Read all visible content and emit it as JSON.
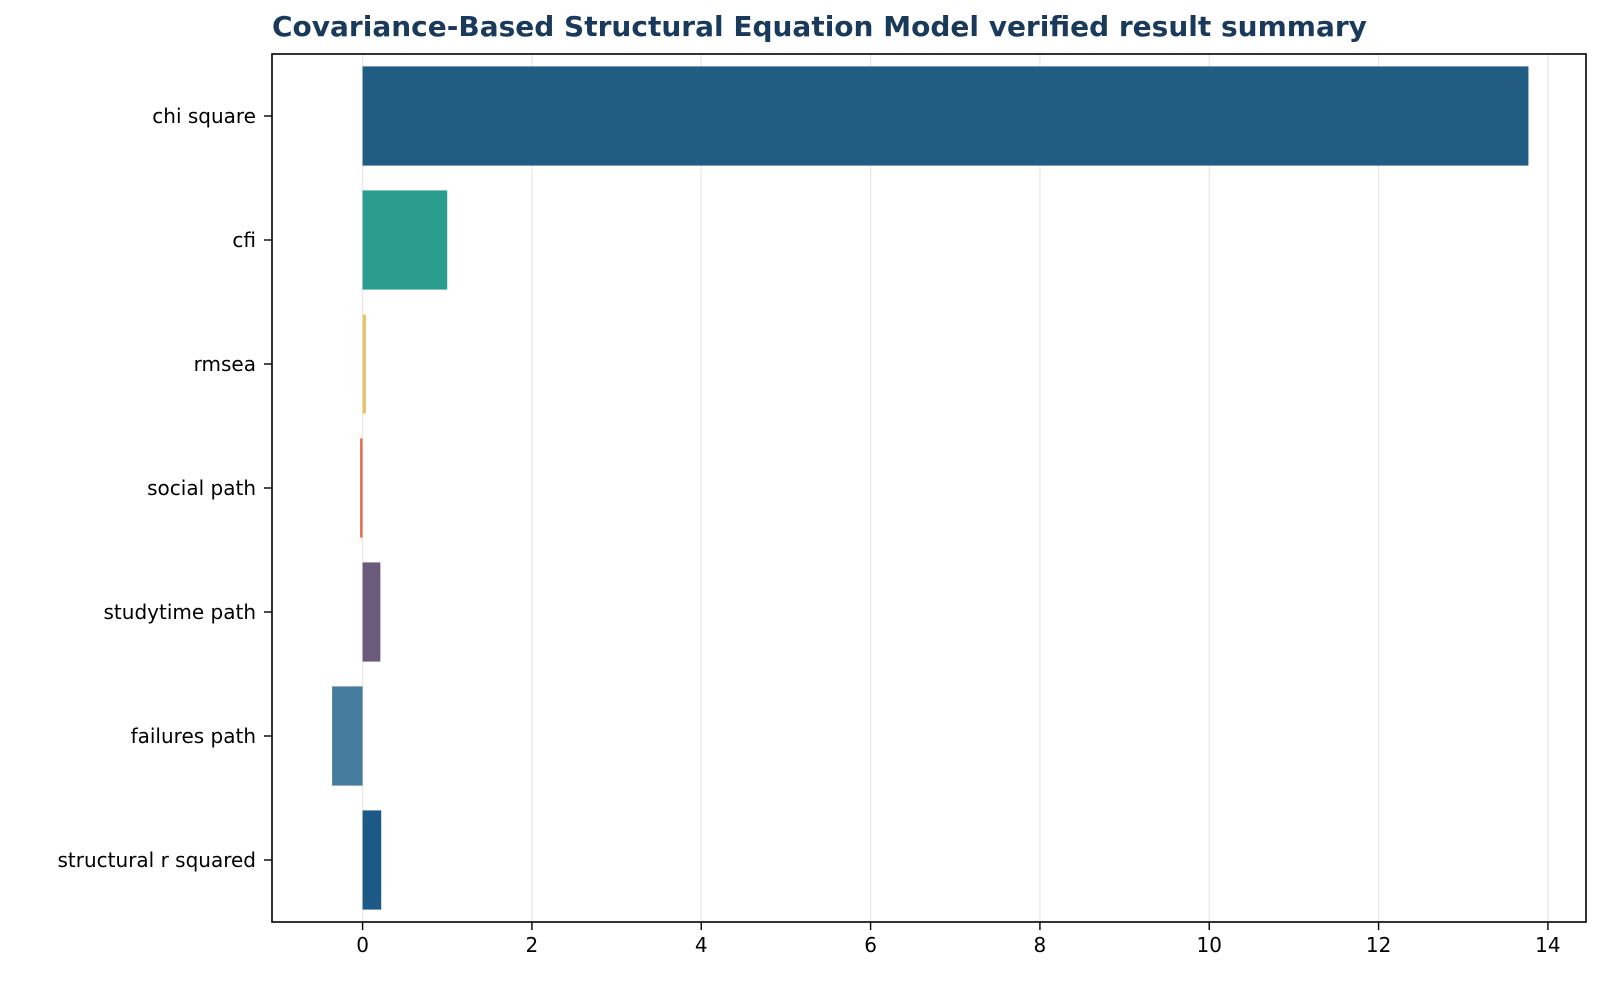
{
  "chart_data": {
    "type": "bar",
    "orientation": "horizontal",
    "title": "Covariance-Based Structural Equation Model verified result summary",
    "xlabel": "",
    "ylabel": "",
    "categories": [
      "chi square",
      "cfi",
      "rmsea",
      "social path",
      "studytime path",
      "failures path",
      "structural r squared"
    ],
    "values": [
      13.77,
      1.0,
      0.04,
      -0.03,
      0.21,
      -0.36,
      0.22
    ],
    "colors": [
      "#215d82",
      "#2a9d8f",
      "#e9c46a",
      "#e76f51",
      "#6b5b7b",
      "#457b9d",
      "#1d5986"
    ],
    "xlim": [
      -1.07,
      14.45
    ],
    "xticks": [
      0,
      2,
      4,
      6,
      8,
      10,
      12,
      14
    ],
    "xtick_labels": [
      "0",
      "2",
      "4",
      "6",
      "8",
      "10",
      "12",
      "14"
    ],
    "grid": "vertical",
    "legend": "none"
  }
}
